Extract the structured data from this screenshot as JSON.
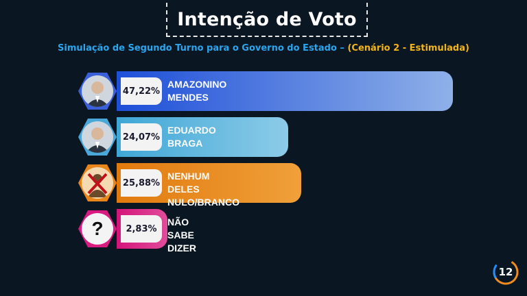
{
  "header": {
    "title": "Intenção de Voto",
    "subtitle_main": "Simulação de Segundo Turno para o Governo do Estado –",
    "subtitle_scenario": "(Cenário 2 - Estimulada)"
  },
  "colors": {
    "background": "#0b1623",
    "subtitle_blue": "#2aa6ee",
    "subtitle_yellow": "#f2b51a",
    "title_border": "#e8e8e8"
  },
  "chart_data": {
    "type": "bar",
    "orientation": "horizontal",
    "categories": [
      "AMAZONINO MENDES",
      "EDUARDO BRAGA",
      "NENHUM DELES NULO/BRANCO",
      "NÃO SABE DIZER"
    ],
    "values": [
      47.22,
      24.07,
      25.88,
      2.83
    ],
    "unit": "%",
    "bars": [
      {
        "line1": "AMAZONINO",
        "line2": "MENDES",
        "value": 47.22,
        "label": "47,22%",
        "color_start": "#1e4fd8",
        "color_end": "#8fb0e8",
        "hex_color": "#3a5fd9",
        "icon": "candidate-photo-icon"
      },
      {
        "line1": "EDUARDO",
        "line2": "BRAGA",
        "value": 24.07,
        "label": "24,07%",
        "color_start": "#3fa7d6",
        "color_end": "#8ccbe8",
        "hex_color": "#4aa8d8",
        "icon": "candidate-photo-icon"
      },
      {
        "line1": "NENHUM DELES",
        "line2": "NULO/BRANCO",
        "value": 25.88,
        "label": "25,88%",
        "color_start": "#e07a0e",
        "color_end": "#f0a03a",
        "hex_color": "#e8861a",
        "icon": "crossed-person-icon"
      },
      {
        "line1": "NÃO SABE",
        "line2": "DIZER",
        "value": 2.83,
        "label": "2,83%",
        "color_start": "#d4147a",
        "color_end": "#e04c9a",
        "hex_color": "#d81b80",
        "icon": "question-mark-icon"
      }
    ],
    "xlim": [
      0,
      47.22
    ],
    "legend": "none",
    "grid": false
  },
  "footer": {
    "logo_text": "12"
  }
}
